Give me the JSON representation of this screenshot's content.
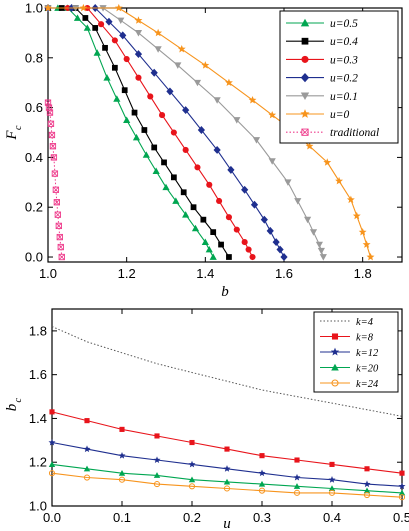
{
  "chart_data": [
    {
      "type": "line",
      "xlabel": "b",
      "ylabel": "F",
      "ylabel_sub": "c",
      "xlim": [
        1.0,
        1.9
      ],
      "ylim": [
        -0.02,
        1.0
      ],
      "xticks": [
        "1.0",
        "1.2",
        "1.4",
        "1.6",
        "1.8"
      ],
      "yticks": [
        "0.0",
        "0.2",
        "0.4",
        "0.6",
        "0.8",
        "1.0"
      ],
      "legend_position": "top-right",
      "series": [
        {
          "name": "u=0.5",
          "color": "#00a651",
          "marker": "triangle-up",
          "line": "solid",
          "x": [
            1.0,
            1.05,
            1.1,
            1.15,
            1.2,
            1.25,
            1.3,
            1.35,
            1.4,
            1.42
          ],
          "y": [
            1.0,
            1.0,
            0.92,
            0.72,
            0.55,
            0.41,
            0.28,
            0.17,
            0.06,
            0.0
          ]
        },
        {
          "name": "u=0.4",
          "color": "#000000",
          "marker": "square",
          "line": "solid",
          "x": [
            1.0,
            1.07,
            1.12,
            1.17,
            1.22,
            1.27,
            1.32,
            1.37,
            1.42,
            1.46
          ],
          "y": [
            1.0,
            1.0,
            0.92,
            0.76,
            0.58,
            0.44,
            0.32,
            0.2,
            0.1,
            0.0
          ]
        },
        {
          "name": "u=0.3",
          "color": "#e8141b",
          "marker": "circle",
          "line": "solid",
          "x": [
            1.0,
            1.1,
            1.17,
            1.23,
            1.29,
            1.35,
            1.41,
            1.46,
            1.5,
            1.52
          ],
          "y": [
            1.0,
            1.0,
            0.87,
            0.72,
            0.57,
            0.43,
            0.29,
            0.16,
            0.06,
            0.0
          ]
        },
        {
          "name": "u=0.2",
          "color": "#1f2f8f",
          "marker": "diamond",
          "line": "solid",
          "x": [
            1.0,
            1.12,
            1.19,
            1.27,
            1.35,
            1.43,
            1.5,
            1.55,
            1.58,
            1.6
          ],
          "y": [
            1.0,
            1.0,
            0.89,
            0.74,
            0.59,
            0.43,
            0.27,
            0.15,
            0.06,
            0.0
          ]
        },
        {
          "name": "u=0.1",
          "color": "#9a9a9a",
          "marker": "triangle-down",
          "line": "solid",
          "x": [
            1.0,
            1.14,
            1.23,
            1.33,
            1.43,
            1.53,
            1.61,
            1.66,
            1.69,
            1.7
          ],
          "y": [
            1.0,
            1.0,
            0.9,
            0.77,
            0.63,
            0.47,
            0.3,
            0.15,
            0.05,
            0.0
          ]
        },
        {
          "name": "u=0",
          "color": "#f7941d",
          "marker": "star",
          "line": "solid",
          "x": [
            1.0,
            1.18,
            1.28,
            1.4,
            1.52,
            1.62,
            1.71,
            1.77,
            1.8,
            1.82
          ],
          "y": [
            1.0,
            1.0,
            0.9,
            0.77,
            0.63,
            0.51,
            0.38,
            0.23,
            0.1,
            0.0
          ]
        },
        {
          "name": "traditional",
          "color": "#ee3b8b",
          "marker": "square-x",
          "line": "dotted",
          "x": [
            1.0,
            1.005,
            1.01,
            1.015,
            1.02,
            1.025,
            1.03,
            1.035
          ],
          "y": [
            0.62,
            0.58,
            0.49,
            0.4,
            0.27,
            0.17,
            0.08,
            0.0
          ]
        }
      ]
    },
    {
      "type": "line",
      "xlabel": "u",
      "ylabel": "b",
      "ylabel_sub": "c",
      "xlim": [
        0.0,
        0.5
      ],
      "ylim": [
        1.0,
        1.9
      ],
      "xticks": [
        "0.0",
        "0.1",
        "0.2",
        "0.3",
        "0.4",
        "0.5"
      ],
      "yticks": [
        "1.0",
        "1.2",
        "1.4",
        "1.6",
        "1.8"
      ],
      "legend_position": "top-right",
      "series": [
        {
          "name": "k=4",
          "color": "#555555",
          "marker": "none",
          "line": "dotted",
          "x": [
            0.0,
            0.05,
            0.1,
            0.15,
            0.2,
            0.25,
            0.3,
            0.35,
            0.4,
            0.45,
            0.5
          ],
          "y": [
            1.82,
            1.75,
            1.7,
            1.65,
            1.61,
            1.57,
            1.53,
            1.5,
            1.47,
            1.44,
            1.41
          ]
        },
        {
          "name": "k=8",
          "color": "#e8141b",
          "marker": "square",
          "line": "solid",
          "x": [
            0.0,
            0.05,
            0.1,
            0.15,
            0.2,
            0.25,
            0.3,
            0.35,
            0.4,
            0.45,
            0.5
          ],
          "y": [
            1.43,
            1.39,
            1.35,
            1.32,
            1.29,
            1.26,
            1.23,
            1.21,
            1.19,
            1.17,
            1.15
          ]
        },
        {
          "name": "k=12",
          "color": "#1f2f8f",
          "marker": "star",
          "line": "solid",
          "x": [
            0.0,
            0.05,
            0.1,
            0.15,
            0.2,
            0.25,
            0.3,
            0.35,
            0.4,
            0.45,
            0.5
          ],
          "y": [
            1.29,
            1.26,
            1.23,
            1.21,
            1.19,
            1.17,
            1.15,
            1.13,
            1.12,
            1.1,
            1.09
          ]
        },
        {
          "name": "k=20",
          "color": "#00a651",
          "marker": "triangle-up",
          "line": "solid",
          "x": [
            0.0,
            0.05,
            0.1,
            0.15,
            0.2,
            0.25,
            0.3,
            0.35,
            0.4,
            0.45,
            0.5
          ],
          "y": [
            1.19,
            1.17,
            1.15,
            1.14,
            1.12,
            1.11,
            1.1,
            1.09,
            1.08,
            1.07,
            1.06
          ]
        },
        {
          "name": "k=24",
          "color": "#f7941d",
          "marker": "circle-open",
          "line": "solid",
          "x": [
            0.0,
            0.05,
            0.1,
            0.15,
            0.2,
            0.25,
            0.3,
            0.35,
            0.4,
            0.45,
            0.5
          ],
          "y": [
            1.15,
            1.13,
            1.12,
            1.1,
            1.09,
            1.08,
            1.07,
            1.06,
            1.06,
            1.05,
            1.04
          ]
        }
      ]
    }
  ]
}
